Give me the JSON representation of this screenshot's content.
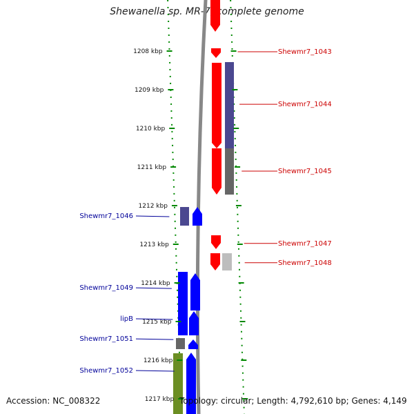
{
  "title": "Shewanella sp. MR-7, complete genome",
  "accession": "Accession: NC_008322",
  "topology": "Topology: circular; Length: 4,792,610 bp; Genes: 4,149",
  "ticks": [
    {
      "label": "1208 kbp",
      "kbp": 1208
    },
    {
      "label": "1209 kbp",
      "kbp": 1209
    },
    {
      "label": "1210 kbp",
      "kbp": 1210
    },
    {
      "label": "1211 kbp",
      "kbp": 1211
    },
    {
      "label": "1212 kbp",
      "kbp": 1212
    },
    {
      "label": "1213 kbp",
      "kbp": 1213
    },
    {
      "label": "1214 kbp",
      "kbp": 1214
    },
    {
      "label": "1215 kbp",
      "kbp": 1215
    },
    {
      "label": "1216 kbp",
      "kbp": 1216
    },
    {
      "label": "1217 kbp",
      "kbp": 1217
    }
  ],
  "colors": {
    "forward_gene": "#0000ff",
    "reverse_gene": "#ff0000",
    "cog_purple": "#4b4890",
    "cog_gray": "#666666",
    "cog_lightgray": "#bdbdbd",
    "cog_olive": "#6b8e23",
    "backbone": "#888888",
    "ring_dots": "#008800",
    "label_forward": "#000099",
    "label_reverse": "#cc0000"
  },
  "gene_labels": [
    {
      "name": "Shewmr7_1043",
      "strand": "reverse",
      "kbp": 1208.0
    },
    {
      "name": "Shewmr7_1044",
      "strand": "reverse",
      "kbp": 1209.36
    },
    {
      "name": "Shewmr7_1045",
      "strand": "reverse",
      "kbp": 1211.09
    },
    {
      "name": "Shewmr7_1046",
      "strand": "forward",
      "kbp": 1212.25
    },
    {
      "name": "Shewmr7_1047",
      "strand": "reverse",
      "kbp": 1212.96
    },
    {
      "name": "Shewmr7_1048",
      "strand": "reverse",
      "kbp": 1213.46
    },
    {
      "name": "Shewmr7_1049",
      "strand": "forward",
      "kbp": 1214.11
    },
    {
      "name": "lipB",
      "strand": "forward",
      "kbp": 1214.91
    },
    {
      "name": "Shewmr7_1051",
      "strand": "forward",
      "kbp": 1215.43
    },
    {
      "name": "Shewmr7_1052",
      "strand": "forward",
      "kbp": 1216.25
    }
  ]
}
